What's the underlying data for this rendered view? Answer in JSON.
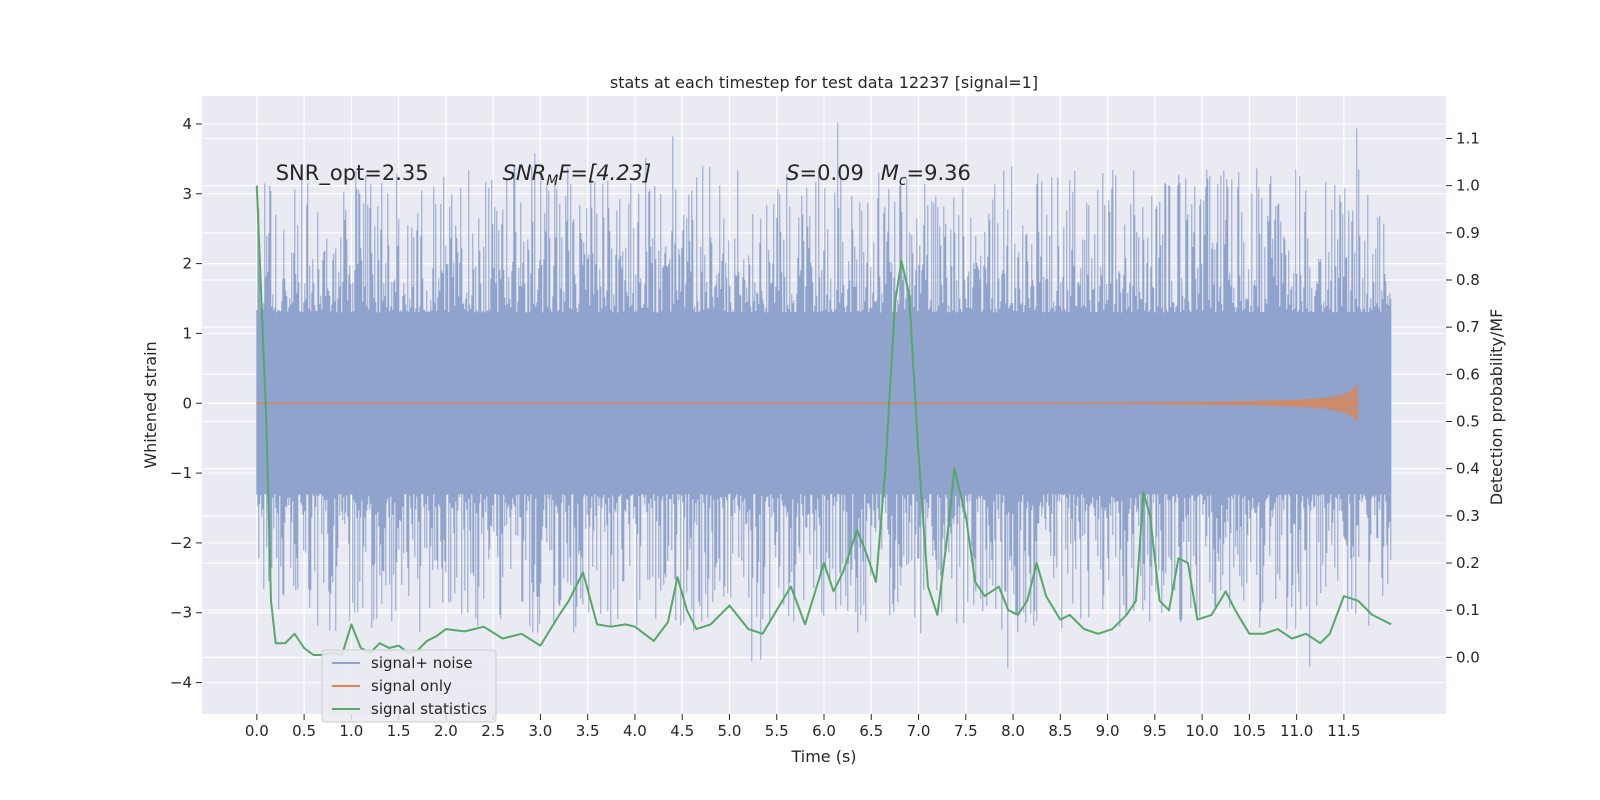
{
  "chart_data": {
    "type": "line",
    "title": "stats at each timestep for test data 12237 [signal=1]",
    "xlabel": "Time (s)",
    "ylabel": "Whitened strain",
    "y2label": "Detection probability/MF",
    "xlim": [
      -0.58,
      12.58
    ],
    "ylim": [
      -4.45,
      4.4
    ],
    "y2lim": [
      -0.12,
      1.19
    ],
    "xticks": [
      0.0,
      0.5,
      1.0,
      1.5,
      2.0,
      2.5,
      3.0,
      3.5,
      4.0,
      4.5,
      5.0,
      5.5,
      6.0,
      6.5,
      7.0,
      7.5,
      8.0,
      8.5,
      9.0,
      9.5,
      10.0,
      10.5,
      11.0,
      11.5
    ],
    "xtick_labels": [
      "0.0",
      "0.5",
      "1.0",
      "1.5",
      "2.0",
      "2.5",
      "3.0",
      "3.5",
      "4.0",
      "4.5",
      "5.0",
      "5.5",
      "6.0",
      "6.5",
      "7.0",
      "7.5",
      "8.0",
      "8.5",
      "9.0",
      "9.5",
      "10.0",
      "10.5",
      "11.0",
      "11.5"
    ],
    "yticks": [
      -4,
      -3,
      -2,
      -1,
      0,
      1,
      2,
      3,
      4
    ],
    "ytick_labels": [
      "−4",
      "−3",
      "−2",
      "−1",
      "0",
      "1",
      "2",
      "3",
      "4"
    ],
    "y2ticks": [
      0.0,
      0.1,
      0.2,
      0.3,
      0.4,
      0.5,
      0.6,
      0.7,
      0.8,
      0.9,
      1.0,
      1.1
    ],
    "y2tick_labels": [
      "0.0",
      "0.1",
      "0.2",
      "0.3",
      "0.4",
      "0.5",
      "0.6",
      "0.7",
      "0.8",
      "0.9",
      "1.0",
      "1.1"
    ],
    "legend_position": "lower-left",
    "annotations": [
      {
        "prefix": "SNR_opt=2.35",
        "x": 0.2,
        "y": 3.2
      },
      {
        "prefix": "SNR",
        "sub": "M",
        "suffix": "F=[4.23]",
        "x": 2.6,
        "y": 3.2
      },
      {
        "prefix": "S",
        "suffix": "=0.09",
        "x": 5.6,
        "y": 3.2
      },
      {
        "prefix": "M",
        "sub": "c",
        "suffix": "=9.36",
        "x": 6.6,
        "y": 3.2
      }
    ],
    "series": [
      {
        "name": "signal+ noise",
        "color": "#8fa3cc",
        "t_start": 0.0,
        "t_end": 12.0,
        "core_amplitude": 1.3,
        "peak_range": [
          -4.1,
          4.05
        ]
      },
      {
        "name": "signal only",
        "color": "#dd8452",
        "t_start": 0.0,
        "t_end": 11.65,
        "x_env": [
          0.0,
          8.0,
          9.0,
          10.0,
          10.5,
          11.0,
          11.3,
          11.5,
          11.6,
          11.65
        ],
        "y_env": [
          0.0,
          0.005,
          0.01,
          0.02,
          0.03,
          0.05,
          0.08,
          0.13,
          0.2,
          0.28
        ]
      },
      {
        "name": "signal statistics",
        "color": "#55a868",
        "axis": "right",
        "x": [
          0.0,
          0.1,
          0.15,
          0.2,
          0.3,
          0.4,
          0.5,
          0.6,
          0.7,
          0.8,
          0.9,
          1.0,
          1.1,
          1.2,
          1.3,
          1.4,
          1.5,
          1.6,
          1.7,
          1.8,
          1.9,
          2.0,
          2.2,
          2.4,
          2.6,
          2.8,
          3.0,
          3.2,
          3.3,
          3.45,
          3.6,
          3.75,
          3.9,
          4.0,
          4.2,
          4.35,
          4.45,
          4.55,
          4.65,
          4.8,
          5.0,
          5.2,
          5.35,
          5.5,
          5.65,
          5.8,
          6.0,
          6.1,
          6.2,
          6.35,
          6.45,
          6.55,
          6.65,
          6.75,
          6.82,
          6.9,
          7.0,
          7.1,
          7.2,
          7.3,
          7.38,
          7.5,
          7.6,
          7.7,
          7.85,
          7.95,
          8.05,
          8.15,
          8.25,
          8.35,
          8.5,
          8.6,
          8.75,
          8.9,
          9.05,
          9.2,
          9.3,
          9.38,
          9.45,
          9.55,
          9.65,
          9.75,
          9.85,
          9.95,
          10.1,
          10.25,
          10.35,
          10.5,
          10.65,
          10.8,
          10.95,
          11.1,
          11.25,
          11.35,
          11.5,
          11.65,
          11.8,
          11.9,
          12.0
        ],
        "y": [
          1.0,
          0.5,
          0.12,
          0.03,
          0.03,
          0.05,
          0.02,
          0.005,
          0.005,
          0.01,
          0.005,
          0.07,
          0.02,
          0.01,
          0.03,
          0.02,
          0.025,
          0.01,
          0.015,
          0.035,
          0.045,
          0.06,
          0.055,
          0.065,
          0.04,
          0.05,
          0.025,
          0.09,
          0.12,
          0.18,
          0.07,
          0.065,
          0.07,
          0.065,
          0.035,
          0.075,
          0.17,
          0.1,
          0.06,
          0.07,
          0.11,
          0.06,
          0.05,
          0.1,
          0.15,
          0.07,
          0.2,
          0.14,
          0.18,
          0.27,
          0.22,
          0.16,
          0.4,
          0.75,
          0.84,
          0.77,
          0.43,
          0.15,
          0.09,
          0.25,
          0.4,
          0.3,
          0.16,
          0.13,
          0.15,
          0.1,
          0.09,
          0.12,
          0.2,
          0.13,
          0.08,
          0.09,
          0.06,
          0.05,
          0.06,
          0.09,
          0.12,
          0.35,
          0.3,
          0.12,
          0.1,
          0.21,
          0.2,
          0.08,
          0.09,
          0.14,
          0.1,
          0.05,
          0.05,
          0.06,
          0.04,
          0.05,
          0.03,
          0.05,
          0.13,
          0.12,
          0.09,
          0.08,
          0.07
        ]
      }
    ]
  }
}
